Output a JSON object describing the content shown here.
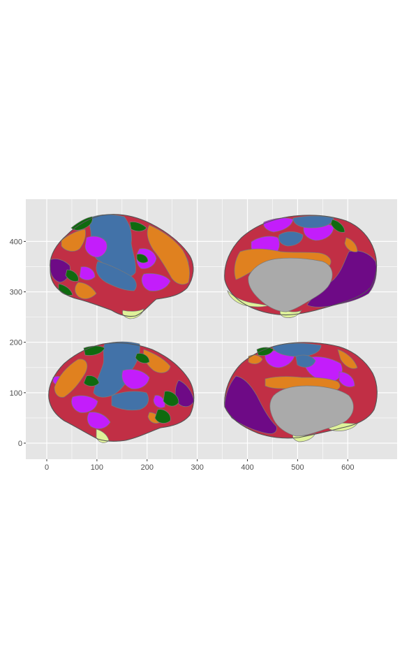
{
  "chart_data": {
    "type": "other",
    "title": "",
    "xlabel": "",
    "ylabel": "",
    "xlim": [
      -40,
      690
    ],
    "ylim": [
      -32,
      485
    ],
    "x_ticks": [
      0,
      100,
      200,
      300,
      400,
      500,
      600
    ],
    "y_ticks": [
      0,
      100,
      200,
      300,
      400
    ],
    "grid": true,
    "legend": "none",
    "colors": {
      "panel_bg": "#e5e5e5",
      "grid": "#ffffff",
      "medial_wall": "#aaaaaa",
      "blue": "#4272a8",
      "red": "#c12f45",
      "orange": "#e0811f",
      "purple": "#6e0a86",
      "magenta": "#c31dfb",
      "green": "#0f6a0f",
      "lightgreen": "#dff29a",
      "border": "#7a7a7a"
    },
    "views": [
      {
        "name": "lateral-left",
        "x_range": [
          0,
          290
        ],
        "y_range": [
          250,
          452
        ]
      },
      {
        "name": "medial-left",
        "x_range": [
          345,
          650
        ],
        "y_range": [
          250,
          450
        ]
      },
      {
        "name": "lateral-right",
        "x_range": [
          0,
          290
        ],
        "y_range": [
          0,
          202
        ]
      },
      {
        "name": "medial-right",
        "x_range": [
          345,
          650
        ],
        "y_range": [
          0,
          200
        ]
      }
    ]
  }
}
